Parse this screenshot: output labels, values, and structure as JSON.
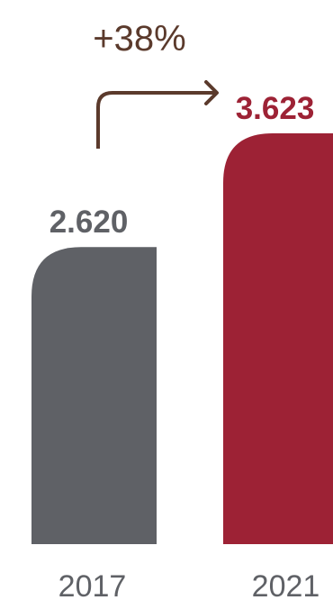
{
  "chart_data": {
    "type": "bar",
    "categories": [
      "2017",
      "2021"
    ],
    "values": [
      2620,
      3623
    ],
    "value_labels": [
      "2.620",
      "3.623"
    ],
    "bar_colors": [
      "#5f6166",
      "#9d2235"
    ],
    "value_label_colors": [
      "#5f6166",
      "#9d2235"
    ],
    "annotation": {
      "text": "+38%",
      "from": "2017",
      "to": "2021",
      "color": "#5b3a2c"
    },
    "ylim": [
      0,
      3623
    ]
  }
}
